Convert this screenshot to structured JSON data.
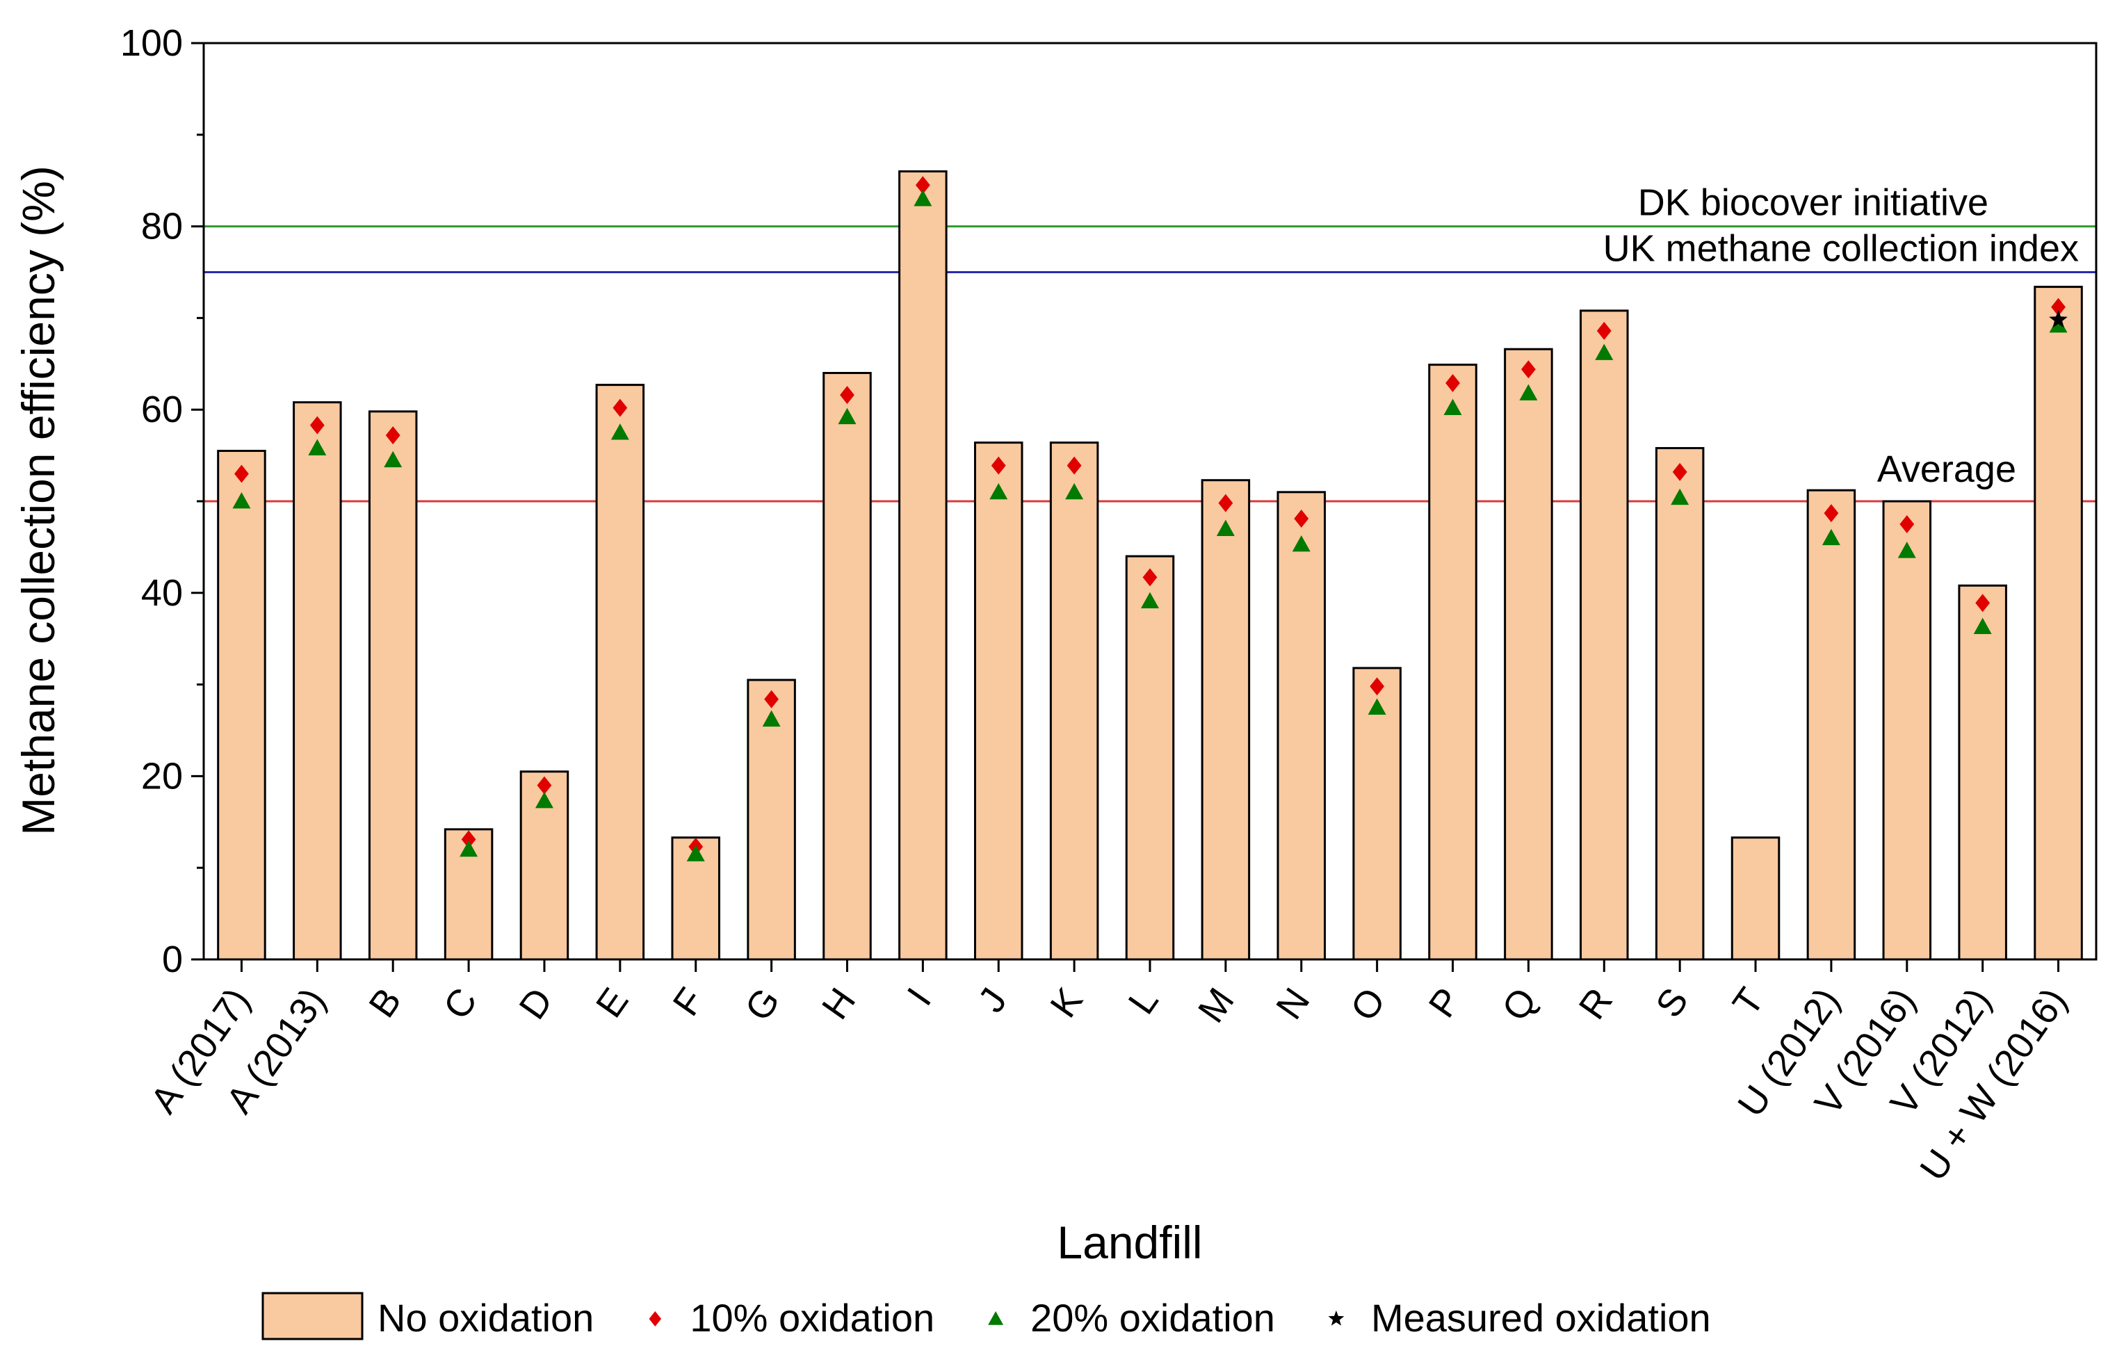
{
  "chart_data": {
    "type": "bar",
    "title": "",
    "xlabel": "Landfill",
    "ylabel": "Methane collection efficiency (%)",
    "ylim": [
      0,
      100
    ],
    "yticks": [
      0,
      20,
      40,
      60,
      80,
      100
    ],
    "grid": false,
    "legend_position": "bottom",
    "categories": [
      "A (2017)",
      "A (2013)",
      "B",
      "C",
      "D",
      "E",
      "F",
      "G",
      "H",
      "I",
      "J",
      "K",
      "L",
      "M",
      "N",
      "O",
      "P",
      "Q",
      "R",
      "S",
      "T",
      "U (2012)",
      "V (2016)",
      "V (2012)",
      "U + W (2016)"
    ],
    "series": [
      {
        "name": "No oxidation",
        "kind": "bar",
        "color": "#F9C9A0",
        "values": [
          55.5,
          60.8,
          59.8,
          14.2,
          20.5,
          62.7,
          13.3,
          30.5,
          64.0,
          86.0,
          56.4,
          56.4,
          44.0,
          52.3,
          51.0,
          31.8,
          64.9,
          66.6,
          70.8,
          55.8,
          13.3,
          51.2,
          50.0,
          40.8,
          73.4
        ]
      },
      {
        "name": "10% oxidation",
        "kind": "marker",
        "marker": "diamond",
        "color": "#E00000",
        "values": [
          53.0,
          58.3,
          57.2,
          13.1,
          19.0,
          60.2,
          12.3,
          28.4,
          61.6,
          84.5,
          53.9,
          53.9,
          41.7,
          49.8,
          48.1,
          29.8,
          62.9,
          64.4,
          68.6,
          53.2,
          null,
          48.7,
          47.5,
          38.9,
          71.2
        ]
      },
      {
        "name": "20% oxidation",
        "kind": "marker",
        "marker": "triangle",
        "color": "#007A00",
        "values": [
          50.0,
          55.8,
          54.5,
          12.0,
          17.3,
          57.5,
          11.5,
          26.2,
          59.2,
          83.0,
          51.0,
          51.0,
          39.1,
          47.0,
          45.3,
          27.5,
          60.2,
          61.8,
          66.2,
          50.4,
          null,
          46.0,
          44.6,
          36.3,
          69.2
        ]
      },
      {
        "name": "Measured oxidation",
        "kind": "marker",
        "marker": "star",
        "color": "#000000",
        "values": [
          null,
          null,
          null,
          null,
          null,
          null,
          null,
          null,
          null,
          null,
          null,
          null,
          null,
          null,
          null,
          null,
          null,
          null,
          null,
          null,
          null,
          null,
          null,
          null,
          69.8
        ]
      }
    ],
    "reference_lines": [
      {
        "label": "DK biocover initiative",
        "value": 80,
        "color": "#2E9B2E"
      },
      {
        "label": "UK methane collection index",
        "value": 75,
        "color": "#2A2AB0"
      },
      {
        "label": "Average",
        "value": 50,
        "color": "#D83A3A"
      }
    ]
  }
}
